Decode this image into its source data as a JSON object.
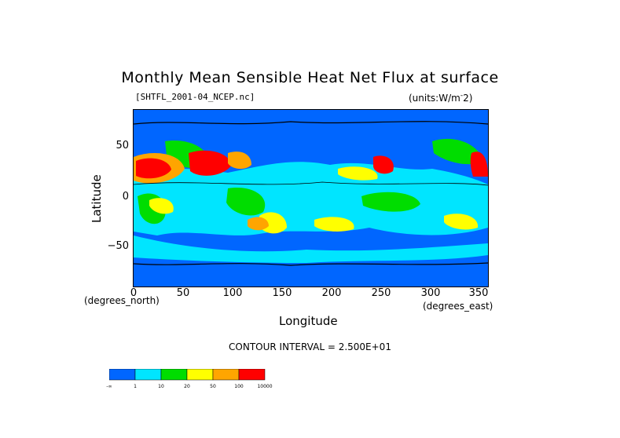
{
  "title": "Monthly Mean Sensible Heat Net Flux at surface",
  "dataset_label": "[SHTFL_2001-04_NCEP.nc]",
  "units_label": "(units:W/m^-2)",
  "contour_interval": "CONTOUR INTERVAL = 2.500E+01",
  "axes": {
    "xlabel": "Longitude",
    "x_unit": "(degrees_east)",
    "ylabel": "Latitude",
    "y_unit": "(degrees_north)"
  },
  "chart_data": {
    "type": "heatmap",
    "title": "Monthly Mean Sensible Heat Net Flux at surface",
    "xlabel": "Longitude",
    "ylabel": "Latitude",
    "xlim": [
      0,
      360
    ],
    "ylim": [
      -90,
      90
    ],
    "x_ticks": [
      0,
      50,
      100,
      150,
      200,
      250,
      300,
      350
    ],
    "y_ticks": [
      50,
      0,
      -50
    ],
    "colorbar": {
      "levels": [
        "-∞",
        "1",
        "10",
        "20",
        "50",
        "100",
        "10000"
      ],
      "colors": [
        "#0066ff",
        "#00e5ff",
        "#00dd00",
        "#ffff00",
        "#ffa500",
        "#ff0000"
      ]
    }
  }
}
